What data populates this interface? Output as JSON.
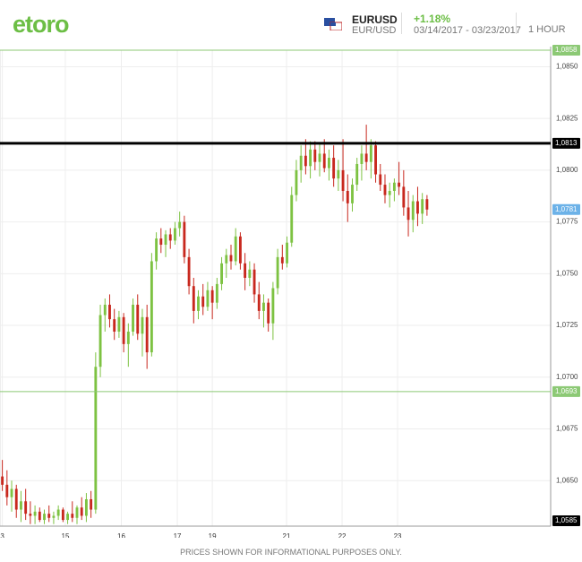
{
  "header": {
    "logo": "etoro",
    "symbol": "EURUSD",
    "pair": "EUR/USD",
    "change": "+1.18%",
    "dates": "03/14/2017 - 03/23/2017",
    "interval": "1 HOUR"
  },
  "footer": "PRICES SHOWN FOR INFORMATIONAL PURPOSES ONLY.",
  "chart_data": {
    "type": "candlestick",
    "up_color": "#7dc242",
    "down_color": "#c8281e",
    "open": [
      1.0652,
      1.0648,
      1.0642,
      1.0646,
      1.0636,
      1.064,
      1.0634,
      1.0633,
      1.0635,
      1.0631,
      1.0634,
      1.0632,
      1.0633,
      1.0636,
      1.0631,
      1.0634,
      1.0632,
      1.0637,
      1.0633,
      1.0641,
      1.0636,
      1.0705,
      1.073,
      1.0735,
      1.0728,
      1.0722,
      1.0729,
      1.0716,
      1.0722,
      1.0735,
      1.0721,
      1.0729,
      1.0712,
      1.0756,
      1.0767,
      1.0764,
      1.0769,
      1.0766,
      1.0772,
      1.0775,
      1.0758,
      1.0744,
      1.0732,
      1.0739,
      1.0734,
      1.0742,
      1.0736,
      1.0745,
      1.0755,
      1.0759,
      1.0756,
      1.0768,
      1.0755,
      1.0748,
      1.0752,
      1.074,
      1.0732,
      1.0736,
      1.0726,
      1.0743,
      1.0758,
      1.0755,
      1.0765,
      1.0788,
      1.08,
      1.0807,
      1.0802,
      1.081,
      1.0804,
      1.0808,
      1.0801,
      1.0806,
      1.0796,
      1.08,
      1.079,
      1.0784,
      1.0793,
      1.0803,
      1.0808,
      1.0804,
      1.0812,
      1.0798,
      1.0793,
      1.0788,
      1.079,
      1.0794,
      1.0792,
      1.0782,
      1.0776,
      1.0785,
      1.0779,
      1.0786
    ],
    "high": [
      1.066,
      1.0655,
      1.065,
      1.0648,
      1.0645,
      1.0646,
      1.064,
      1.0638,
      1.0637,
      1.0636,
      1.0638,
      1.0635,
      1.0638,
      1.0637,
      1.0635,
      1.064,
      1.0638,
      1.0642,
      1.0644,
      1.0645,
      1.0712,
      1.0735,
      1.0738,
      1.074,
      1.0733,
      1.0732,
      1.0731,
      1.0726,
      1.0738,
      1.074,
      1.0733,
      1.0735,
      1.076,
      1.077,
      1.0772,
      1.0771,
      1.0772,
      1.0775,
      1.078,
      1.0778,
      1.0762,
      1.0748,
      1.0742,
      1.0745,
      1.0746,
      1.0744,
      1.0748,
      1.0758,
      1.0762,
      1.0764,
      1.0772,
      1.077,
      1.076,
      1.0756,
      1.0755,
      1.0746,
      1.074,
      1.0738,
      1.0746,
      1.0762,
      1.0764,
      1.0768,
      1.0792,
      1.0805,
      1.0812,
      1.0815,
      1.0814,
      1.0814,
      1.0813,
      1.0815,
      1.081,
      1.0812,
      1.0805,
      1.0815,
      1.0798,
      1.0796,
      1.0806,
      1.0812,
      1.0822,
      1.0815,
      1.0814,
      1.0803,
      1.0798,
      1.0794,
      1.0796,
      1.0804,
      1.08,
      1.079,
      1.0788,
      1.0792,
      1.0789,
      1.0788
    ],
    "low": [
      1.0645,
      1.0638,
      1.0635,
      1.0632,
      1.063,
      1.0631,
      1.0629,
      1.0629,
      1.063,
      1.0629,
      1.063,
      1.0629,
      1.0631,
      1.063,
      1.0629,
      1.063,
      1.0629,
      1.0631,
      1.063,
      1.0632,
      1.0634,
      1.07,
      1.0722,
      1.0724,
      1.0718,
      1.0719,
      1.0712,
      1.0705,
      1.072,
      1.0718,
      1.071,
      1.0704,
      1.071,
      1.0752,
      1.076,
      1.0758,
      1.0762,
      1.0764,
      1.0768,
      1.0755,
      1.074,
      1.0726,
      1.0728,
      1.073,
      1.0732,
      1.0728,
      1.0733,
      1.0742,
      1.0748,
      1.0752,
      1.0754,
      1.0752,
      1.0742,
      1.0744,
      1.0736,
      1.0728,
      1.0724,
      1.0722,
      1.0718,
      1.074,
      1.0752,
      1.0753,
      1.0763,
      1.0785,
      1.0794,
      1.0798,
      1.0796,
      1.08,
      1.0797,
      1.0799,
      1.0795,
      1.0792,
      1.079,
      1.0785,
      1.0775,
      1.078,
      1.079,
      1.0795,
      1.08,
      1.0796,
      1.0794,
      1.079,
      1.0784,
      1.0782,
      1.0785,
      1.0788,
      1.0778,
      1.0768,
      1.077,
      1.0773,
      1.0774,
      1.0778
    ],
    "close": [
      1.0648,
      1.0642,
      1.0646,
      1.0636,
      1.064,
      1.0634,
      1.0633,
      1.0635,
      1.0631,
      1.0634,
      1.0632,
      1.0633,
      1.0636,
      1.0631,
      1.0634,
      1.0632,
      1.0637,
      1.0633,
      1.0641,
      1.0636,
      1.0705,
      1.073,
      1.0735,
      1.0728,
      1.0722,
      1.0729,
      1.0716,
      1.0722,
      1.0735,
      1.0721,
      1.0729,
      1.0712,
      1.0756,
      1.0767,
      1.0764,
      1.0769,
      1.0766,
      1.0772,
      1.0775,
      1.0758,
      1.0744,
      1.0732,
      1.0739,
      1.0734,
      1.0742,
      1.0736,
      1.0745,
      1.0755,
      1.0759,
      1.0756,
      1.0768,
      1.0755,
      1.0748,
      1.0752,
      1.074,
      1.0732,
      1.0736,
      1.0726,
      1.0743,
      1.0758,
      1.0755,
      1.0765,
      1.0788,
      1.08,
      1.0807,
      1.0802,
      1.081,
      1.0804,
      1.0808,
      1.0801,
      1.0806,
      1.0796,
      1.08,
      1.079,
      1.0784,
      1.0793,
      1.0803,
      1.0808,
      1.0804,
      1.0812,
      1.0798,
      1.0793,
      1.0788,
      1.079,
      1.0794,
      1.0792,
      1.0782,
      1.0776,
      1.0785,
      1.0779,
      1.0786,
      1.0781
    ],
    "xlim": [
      0,
      118
    ],
    "xticks": [
      {
        "value": 0.5,
        "label": "3"
      },
      {
        "value": 14,
        "label": "15"
      },
      {
        "value": 26,
        "label": "16"
      },
      {
        "value": 38,
        "label": "17"
      },
      {
        "value": 45.5,
        "label": "19"
      },
      {
        "value": 61.4,
        "label": "21"
      },
      {
        "value": 73.3,
        "label": "22"
      },
      {
        "value": 85.2,
        "label": "23"
      }
    ],
    "ylim": [
      1.0628,
      1.0858
    ],
    "yticks": [
      {
        "value": 1.065,
        "label": "1,0650"
      },
      {
        "value": 1.0675,
        "label": "1,0675"
      },
      {
        "value": 1.07,
        "label": "1,0700"
      },
      {
        "value": 1.0725,
        "label": "1,0725"
      },
      {
        "value": 1.075,
        "label": "1,0750"
      },
      {
        "value": 1.0775,
        "label": "1,0775"
      },
      {
        "value": 1.08,
        "label": "1,0800"
      },
      {
        "value": 1.0825,
        "label": "1,0825"
      },
      {
        "value": 1.085,
        "label": "1,0850"
      }
    ],
    "grid": true,
    "levels": [
      {
        "value": 1.0858,
        "label": "1,0858",
        "color": "#8cc975",
        "line": true
      },
      {
        "value": 1.0813,
        "label": "1,0813",
        "color": "#000000",
        "line": true
      },
      {
        "value": 1.0781,
        "label": "1,0781",
        "color": "#6cb2e8",
        "line": false
      },
      {
        "value": 1.0693,
        "label": "1,0693",
        "color": "#8cc975",
        "line": true
      },
      {
        "value": 1.0585,
        "label": "1,0585",
        "color": "#000000",
        "line": false
      }
    ]
  }
}
